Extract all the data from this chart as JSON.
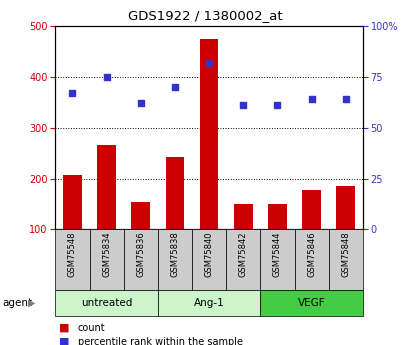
{
  "title": "GDS1922 / 1380002_at",
  "samples": [
    "GSM75548",
    "GSM75834",
    "GSM75836",
    "GSM75838",
    "GSM75840",
    "GSM75842",
    "GSM75844",
    "GSM75846",
    "GSM75848"
  ],
  "counts": [
    207,
    265,
    153,
    243,
    475,
    150,
    150,
    178,
    185
  ],
  "percentiles": [
    67,
    75,
    62,
    70,
    82,
    61,
    61,
    64,
    64
  ],
  "groups": [
    {
      "label": "untreated",
      "start": 0,
      "end": 3,
      "color": "#ccf5cc"
    },
    {
      "label": "Ang-1",
      "start": 3,
      "end": 6,
      "color": "#ccf5cc"
    },
    {
      "label": "VEGF",
      "start": 6,
      "end": 9,
      "color": "#44cc44"
    }
  ],
  "bar_color": "#cc0000",
  "dot_color": "#3333cc",
  "left_ylim": [
    100,
    500
  ],
  "left_yticks": [
    100,
    200,
    300,
    400,
    500
  ],
  "right_ylim": [
    0,
    100
  ],
  "right_yticks": [
    0,
    25,
    50,
    75,
    100
  ],
  "right_yticklabels": [
    "0",
    "25",
    "50",
    "75",
    "100%"
  ],
  "bar_color_label": "#cc0000",
  "dot_color_label": "#3333cc",
  "bar_width": 0.55,
  "grid_color": "#000000",
  "tick_area_color": "#cccccc",
  "agent_label": "agent",
  "legend_count_label": "count",
  "legend_pct_label": "percentile rank within the sample"
}
